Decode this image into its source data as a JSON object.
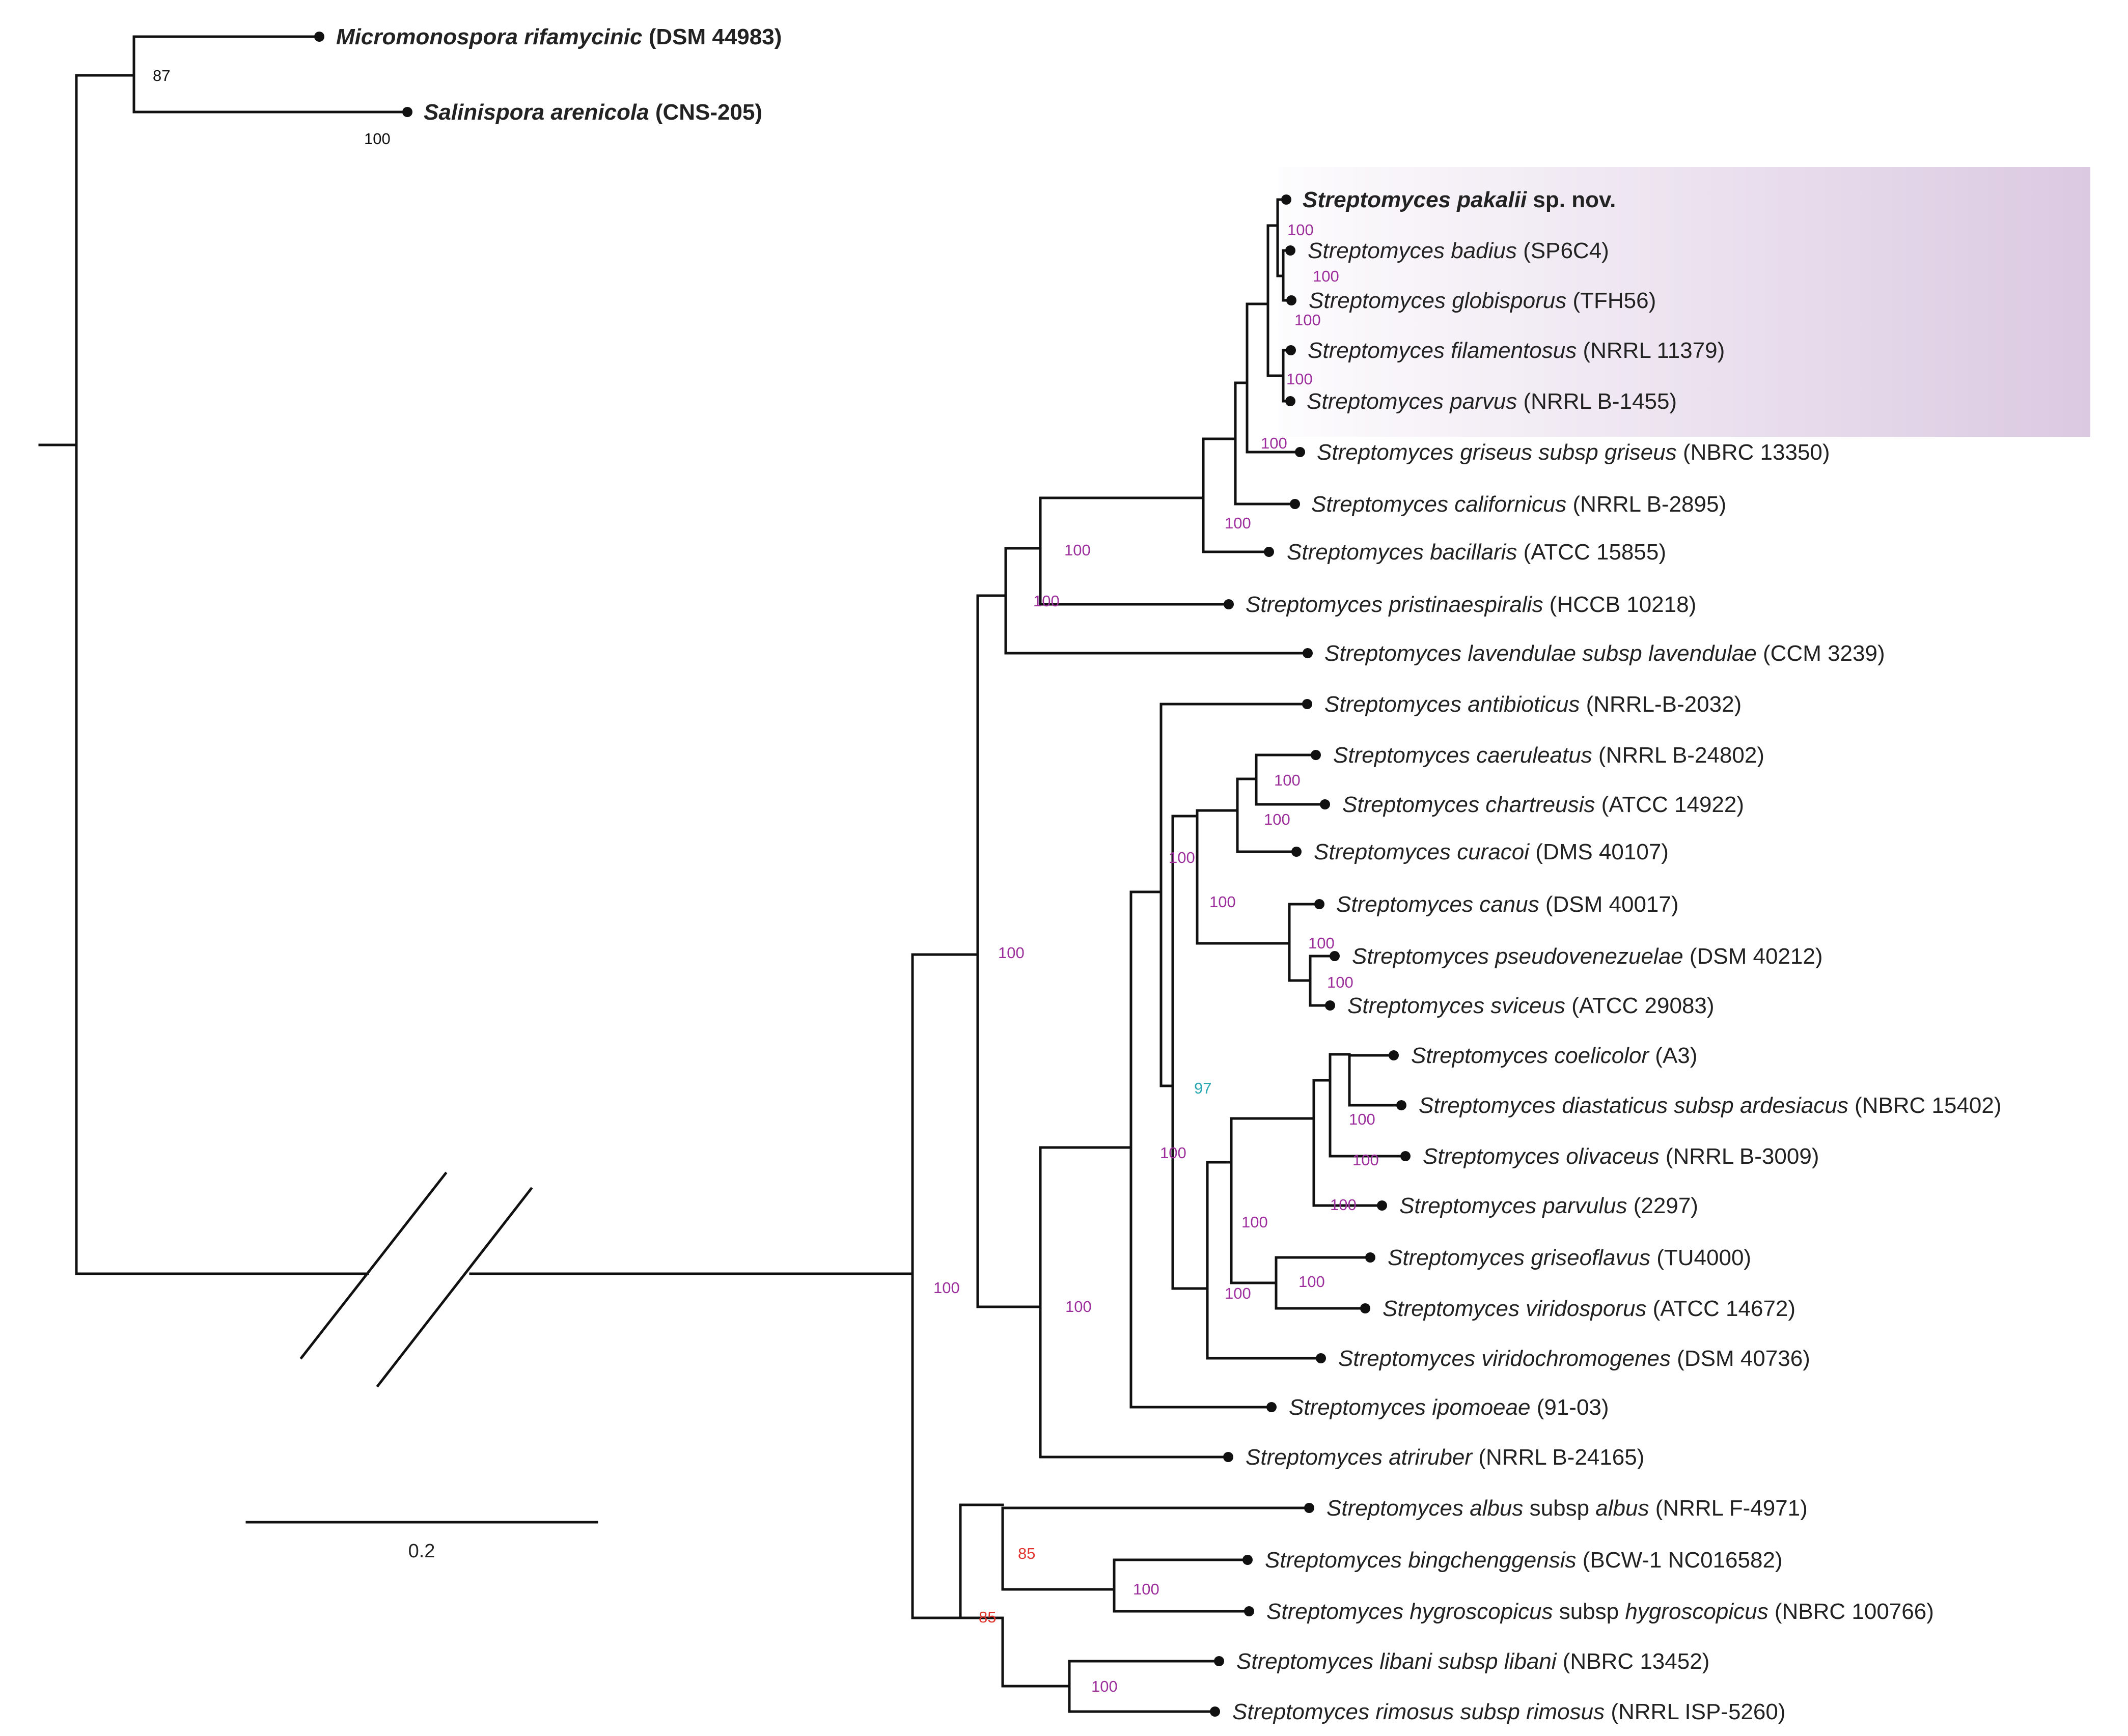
{
  "colors": {
    "outgroup": "#5b2a86",
    "bootstrap_default": "#9c2f9c",
    "bootstrap_97": "#2aa7b0",
    "bootstrap_85": "#e0352f",
    "bootstrap_outgroup": "#111111",
    "highlight": "#d9c6e0",
    "branch": "#111111"
  },
  "taxa": [
    {
      "parts": [
        {
          "t": "Micromonospora rifamycinic",
          "i": true
        },
        {
          "t": " (DSM 44983)",
          "i": false
        }
      ],
      "outgroup": true
    },
    {
      "parts": [
        {
          "t": "Salinispora arenicola",
          "i": true
        },
        {
          "t": " (CNS-205)",
          "i": false
        }
      ],
      "outgroup": true
    },
    {
      "parts": [
        {
          "t": "Streptomyces pakalii",
          "i": true
        },
        {
          "t": " sp. nov.",
          "i": false
        }
      ],
      "bold": true
    },
    {
      "parts": [
        {
          "t": "Streptomyces badius",
          "i": true
        },
        {
          "t": " (SP6C4)",
          "i": false
        }
      ]
    },
    {
      "parts": [
        {
          "t": "Streptomyces globisporus",
          "i": true
        },
        {
          "t": " (TFH56)",
          "i": false
        }
      ]
    },
    {
      "parts": [
        {
          "t": "Streptomyces filamentosus",
          "i": true
        },
        {
          "t": " (NRRL 11379)",
          "i": false
        }
      ]
    },
    {
      "parts": [
        {
          "t": "Streptomyces parvus",
          "i": true
        },
        {
          "t": " (NRRL B-1455)",
          "i": false
        }
      ]
    },
    {
      "parts": [
        {
          "t": "Streptomyces griseus subsp griseus",
          "i": true
        },
        {
          "t": " (NBRC 13350)",
          "i": false
        }
      ]
    },
    {
      "parts": [
        {
          "t": "Streptomyces californicus",
          "i": true
        },
        {
          "t": " (NRRL B-2895)",
          "i": false
        }
      ]
    },
    {
      "parts": [
        {
          "t": "Streptomyces bacillaris",
          "i": true
        },
        {
          "t": " (ATCC 15855)",
          "i": false
        }
      ]
    },
    {
      "parts": [
        {
          "t": "Streptomyces pristinaespiralis",
          "i": true
        },
        {
          "t": " (HCCB 10218)",
          "i": false
        }
      ]
    },
    {
      "parts": [
        {
          "t": "Streptomyces lavendulae subsp lavendulae",
          "i": true
        },
        {
          "t": " (CCM 3239)",
          "i": false
        }
      ]
    },
    {
      "parts": [
        {
          "t": "Streptomyces antibioticus",
          "i": true
        },
        {
          "t": " (NRRL-B-2032)",
          "i": false
        }
      ]
    },
    {
      "parts": [
        {
          "t": "Streptomyces caeruleatus",
          "i": true
        },
        {
          "t": " (NRRL B-24802)",
          "i": false
        }
      ]
    },
    {
      "parts": [
        {
          "t": "Streptomyces chartreusis",
          "i": true
        },
        {
          "t": " (ATCC 14922)",
          "i": false
        }
      ]
    },
    {
      "parts": [
        {
          "t": "Streptomyces curacoi",
          "i": true
        },
        {
          "t": " (DMS 40107)",
          "i": false
        }
      ]
    },
    {
      "parts": [
        {
          "t": "Streptomyces canus",
          "i": true
        },
        {
          "t": " (DSM 40017)",
          "i": false
        }
      ]
    },
    {
      "parts": [
        {
          "t": "Streptomyces pseudovenezuelae",
          "i": true
        },
        {
          "t": " (DSM 40212)",
          "i": false
        }
      ]
    },
    {
      "parts": [
        {
          "t": "Streptomyces sviceus",
          "i": true
        },
        {
          "t": " (ATCC 29083)",
          "i": false
        }
      ]
    },
    {
      "parts": [
        {
          "t": "Streptomyces coelicolor",
          "i": true
        },
        {
          "t": " (A3)",
          "i": false
        }
      ]
    },
    {
      "parts": [
        {
          "t": "Streptomyces diastaticus subsp ardesiacus",
          "i": true
        },
        {
          "t": " (NBRC 15402)",
          "i": false
        }
      ]
    },
    {
      "parts": [
        {
          "t": "Streptomyces olivaceus",
          "i": true
        },
        {
          "t": " (NRRL B-3009)",
          "i": false
        }
      ]
    },
    {
      "parts": [
        {
          "t": "Streptomyces parvulus",
          "i": true
        },
        {
          "t": " (2297)",
          "i": false
        }
      ]
    },
    {
      "parts": [
        {
          "t": "Streptomyces griseoflavus",
          "i": true
        },
        {
          "t": " (TU4000)",
          "i": false
        }
      ]
    },
    {
      "parts": [
        {
          "t": "Streptomyces viridosporus",
          "i": true
        },
        {
          "t": " (ATCC 14672)",
          "i": false
        }
      ]
    },
    {
      "parts": [
        {
          "t": "Streptomyces viridochromogenes",
          "i": true
        },
        {
          "t": " (DSM 40736)",
          "i": false
        }
      ]
    },
    {
      "parts": [
        {
          "t": "Streptomyces ipomoeae",
          "i": true
        },
        {
          "t": " (91-03)",
          "i": false
        }
      ]
    },
    {
      "parts": [
        {
          "t": "Streptomyces atriruber",
          "i": true
        },
        {
          "t": " (NRRL  B-24165)",
          "i": false
        }
      ]
    },
    {
      "parts": [
        {
          "t": "Streptomyces albus",
          "i": true
        },
        {
          "t": " subsp ",
          "i": false
        },
        {
          "t": "albus",
          "i": true
        },
        {
          "t": " (NRRL F-4971)",
          "i": false
        }
      ]
    },
    {
      "parts": [
        {
          "t": "Streptomyces bingchenggensis",
          "i": true
        },
        {
          "t": " (BCW-1 NC016582)",
          "i": false
        }
      ]
    },
    {
      "parts": [
        {
          "t": "Streptomyces hygroscopicus",
          "i": true
        },
        {
          "t": " subsp ",
          "i": false
        },
        {
          "t": "hygroscopicus",
          "i": true
        },
        {
          "t": " (NBRC 100766)",
          "i": false
        }
      ]
    },
    {
      "parts": [
        {
          "t": "Streptomyces libani subsp libani",
          "i": true
        },
        {
          "t": " (NBRC 13452)",
          "i": false
        }
      ]
    },
    {
      "parts": [
        {
          "t": "Streptomyces rimosus subsp rimosus",
          "i": true
        },
        {
          "t": " (NRRL ISP-5260)",
          "i": false
        }
      ]
    }
  ],
  "bootstrap": [
    {
      "v": "87",
      "c": "outgroup"
    },
    {
      "v": "100",
      "c": "outgroup"
    },
    {
      "v": "100"
    },
    {
      "v": "100"
    },
    {
      "v": "100"
    },
    {
      "v": "100"
    },
    {
      "v": "100"
    },
    {
      "v": "100"
    },
    {
      "v": "100"
    },
    {
      "v": "100"
    },
    {
      "v": "100"
    },
    {
      "v": "100"
    },
    {
      "v": "100"
    },
    {
      "v": "100"
    },
    {
      "v": "100"
    },
    {
      "v": "100"
    },
    {
      "v": "100"
    },
    {
      "v": "97",
      "c": "cyan"
    },
    {
      "v": "100"
    },
    {
      "v": "100"
    },
    {
      "v": "100"
    },
    {
      "v": "100"
    },
    {
      "v": "100"
    },
    {
      "v": "100"
    },
    {
      "v": "100"
    },
    {
      "v": "100"
    },
    {
      "v": "100"
    },
    {
      "v": "85",
      "c": "red"
    },
    {
      "v": "85",
      "c": "red"
    },
    {
      "v": "100"
    },
    {
      "v": "100"
    }
  ],
  "scale_bar": {
    "label": "0.2"
  }
}
